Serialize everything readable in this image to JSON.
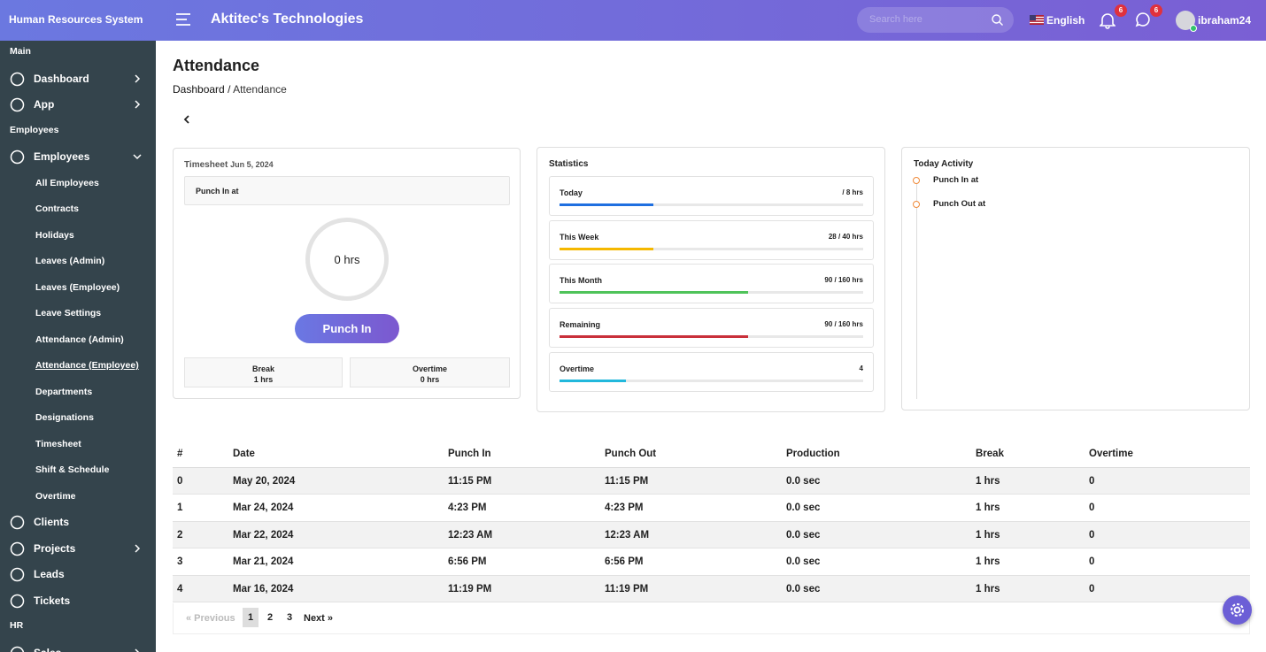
{
  "header": {
    "brand": "Human Resources System",
    "company": "Aktitec's Technologies",
    "search_placeholder": "Search here",
    "language": "English",
    "notifications": "6",
    "messages": "6",
    "user": "ibraham24"
  },
  "sidebar": {
    "items": [
      {
        "text": "Main",
        "kind": "section"
      },
      {
        "text": "Dashboard",
        "kind": "menu",
        "arrow": "right"
      },
      {
        "text": "App",
        "kind": "menu",
        "arrow": "right"
      },
      {
        "text": "Employees",
        "kind": "section"
      },
      {
        "text": "Employees",
        "kind": "menu",
        "arrow": "down"
      },
      {
        "text": "All Employees",
        "kind": "sub"
      },
      {
        "text": "Contracts",
        "kind": "sub"
      },
      {
        "text": "Holidays",
        "kind": "sub"
      },
      {
        "text": "Leaves (Admin)",
        "kind": "sub"
      },
      {
        "text": "Leaves (Employee)",
        "kind": "sub"
      },
      {
        "text": "Leave Settings",
        "kind": "sub"
      },
      {
        "text": "Attendance (Admin)",
        "kind": "sub"
      },
      {
        "text": "Attendance (Employee)",
        "kind": "sub",
        "active": true
      },
      {
        "text": "Departments",
        "kind": "sub"
      },
      {
        "text": "Designations",
        "kind": "sub"
      },
      {
        "text": "Timesheet",
        "kind": "sub"
      },
      {
        "text": "Shift & Schedule",
        "kind": "sub"
      },
      {
        "text": "Overtime",
        "kind": "sub"
      },
      {
        "text": "Clients",
        "kind": "menu"
      },
      {
        "text": "Projects",
        "kind": "menu",
        "arrow": "right"
      },
      {
        "text": "Leads",
        "kind": "menu"
      },
      {
        "text": "Tickets",
        "kind": "menu"
      },
      {
        "text": "HR",
        "kind": "section"
      },
      {
        "text": "Sales",
        "kind": "menu",
        "arrow": "right"
      }
    ]
  },
  "page": {
    "title": "Attendance",
    "breadcrumb": {
      "parent": "Dashboard",
      "separator": "/",
      "current": "Attendance"
    }
  },
  "timesheet": {
    "title": "Timesheet",
    "date": "Jun 5, 2024",
    "punch_label": "Punch In at",
    "hours": "0 hrs",
    "button": "Punch In",
    "break_label": "Break",
    "break_value": "1 hrs",
    "overtime_label": "Overtime",
    "overtime_value": "0 hrs"
  },
  "statistics": {
    "title": "Statistics",
    "items": [
      {
        "label": "Today",
        "value": "/ 8 hrs",
        "progress": 31,
        "color": "#1f6fe0"
      },
      {
        "label": "This Week",
        "value": "28 / 40 hrs",
        "progress": 31,
        "color": "#f5b800"
      },
      {
        "label": "This Month",
        "value": "90 / 160 hrs",
        "progress": 62,
        "color": "#4fc35a"
      },
      {
        "label": "Remaining",
        "value": "90 / 160 hrs",
        "progress": 62,
        "color": "#c9303a"
      },
      {
        "label": "Overtime",
        "value": "4",
        "progress": 22,
        "color": "#22b8dc"
      }
    ]
  },
  "activity": {
    "title": "Today Activity",
    "items": [
      "Punch In at",
      "Punch Out at"
    ]
  },
  "table": {
    "columns": [
      "#",
      "Date",
      "Punch In",
      "Punch Out",
      "Production",
      "Break",
      "Overtime"
    ],
    "rows": [
      [
        "0",
        "May 20, 2024",
        "11:15 PM",
        "11:15 PM",
        "0.0 sec",
        "1 hrs",
        "0"
      ],
      [
        "1",
        "Mar 24, 2024",
        "4:23 PM",
        "4:23 PM",
        "0.0 sec",
        "1 hrs",
        "0"
      ],
      [
        "2",
        "Mar 22, 2024",
        "12:23 AM",
        "12:23 AM",
        "0.0 sec",
        "1 hrs",
        "0"
      ],
      [
        "3",
        "Mar 21, 2024",
        "6:56 PM",
        "6:56 PM",
        "0.0 sec",
        "1 hrs",
        "0"
      ],
      [
        "4",
        "Mar 16, 2024",
        "11:19 PM",
        "11:19 PM",
        "0.0 sec",
        "1 hrs",
        "0"
      ]
    ]
  },
  "pagination": {
    "previous": "« Previous",
    "pages": [
      "1",
      "2",
      "3"
    ],
    "current": "1",
    "next": "Next »"
  }
}
